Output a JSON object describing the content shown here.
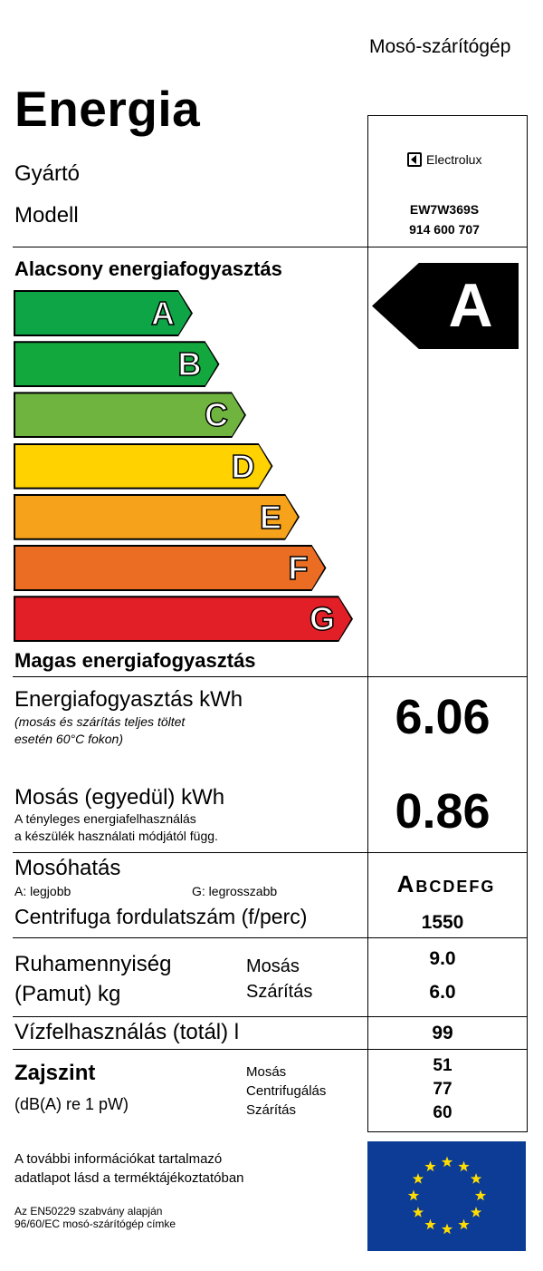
{
  "header": {
    "product_type": "Mosó-szárítógép",
    "title": "Energia"
  },
  "identity": {
    "manufacturer_label": "Gyártó",
    "model_label": "Modell",
    "brand": "Electrolux",
    "model_number": "EW7W369S",
    "product_code": "914 600 707"
  },
  "scale": {
    "top_label": "Alacsony energiafogyasztás",
    "bottom_label": "Magas energiafogyasztás",
    "classes": [
      {
        "letter": "A",
        "color": "#0ea547"
      },
      {
        "letter": "B",
        "color": "#12a83e"
      },
      {
        "letter": "C",
        "color": "#6fb43f"
      },
      {
        "letter": "D",
        "color": "#ffd200"
      },
      {
        "letter": "E",
        "color": "#f7a21b"
      },
      {
        "letter": "F",
        "color": "#ea6d23"
      },
      {
        "letter": "G",
        "color": "#e21f26"
      }
    ],
    "rating": "A"
  },
  "energy_full": {
    "label": "Energiafogyasztás kWh",
    "note_line1": "(mosás és szárítás teljes töltet",
    "note_line2": "esetén 60°C fokon)",
    "value": "6.06"
  },
  "energy_wash": {
    "label": "Mosás (egyedül)  kWh",
    "note_line1": "A tényleges energiafelhasználás",
    "note_line2": "a készülék használati módjától függ.",
    "value": "0.86"
  },
  "wash_performance": {
    "label": "Mosóhatás",
    "best": "A: legjobb",
    "worst": "G: legrosszabb",
    "scale_first": "A",
    "scale_rest": "BCDEFG"
  },
  "spin": {
    "label": "Centrifuga fordulatszám (f/perc)",
    "value": "1550"
  },
  "capacity": {
    "label_line1": "Ruhamennyiség",
    "label_line2": "(Pamut) kg",
    "wash_label": "Mosás",
    "dry_label": "Szárítás",
    "wash_value": "9.0",
    "dry_value": "6.0"
  },
  "water": {
    "label": "Vízfelhasználás (totál) l",
    "value": "99"
  },
  "noise": {
    "label": "Zajszint",
    "unit": "(dB(A) re 1 pW)",
    "wash_label": "Mosás",
    "spin_label": "Centrifugálás",
    "dry_label": "Szárítás",
    "wash_value": "51",
    "spin_value": "77",
    "dry_value": "60"
  },
  "footer": {
    "info_line1": "A további információkat tartalmazó",
    "info_line2": "adatlapot lásd a terméktájékoztatóban",
    "std_line1": "Az EN50229 szabvány alapján",
    "std_line2": "96/60/EC mosó-szárítógép címke"
  },
  "flag": {
    "background": "#0c3c96",
    "star_color": "#ffdd00"
  }
}
